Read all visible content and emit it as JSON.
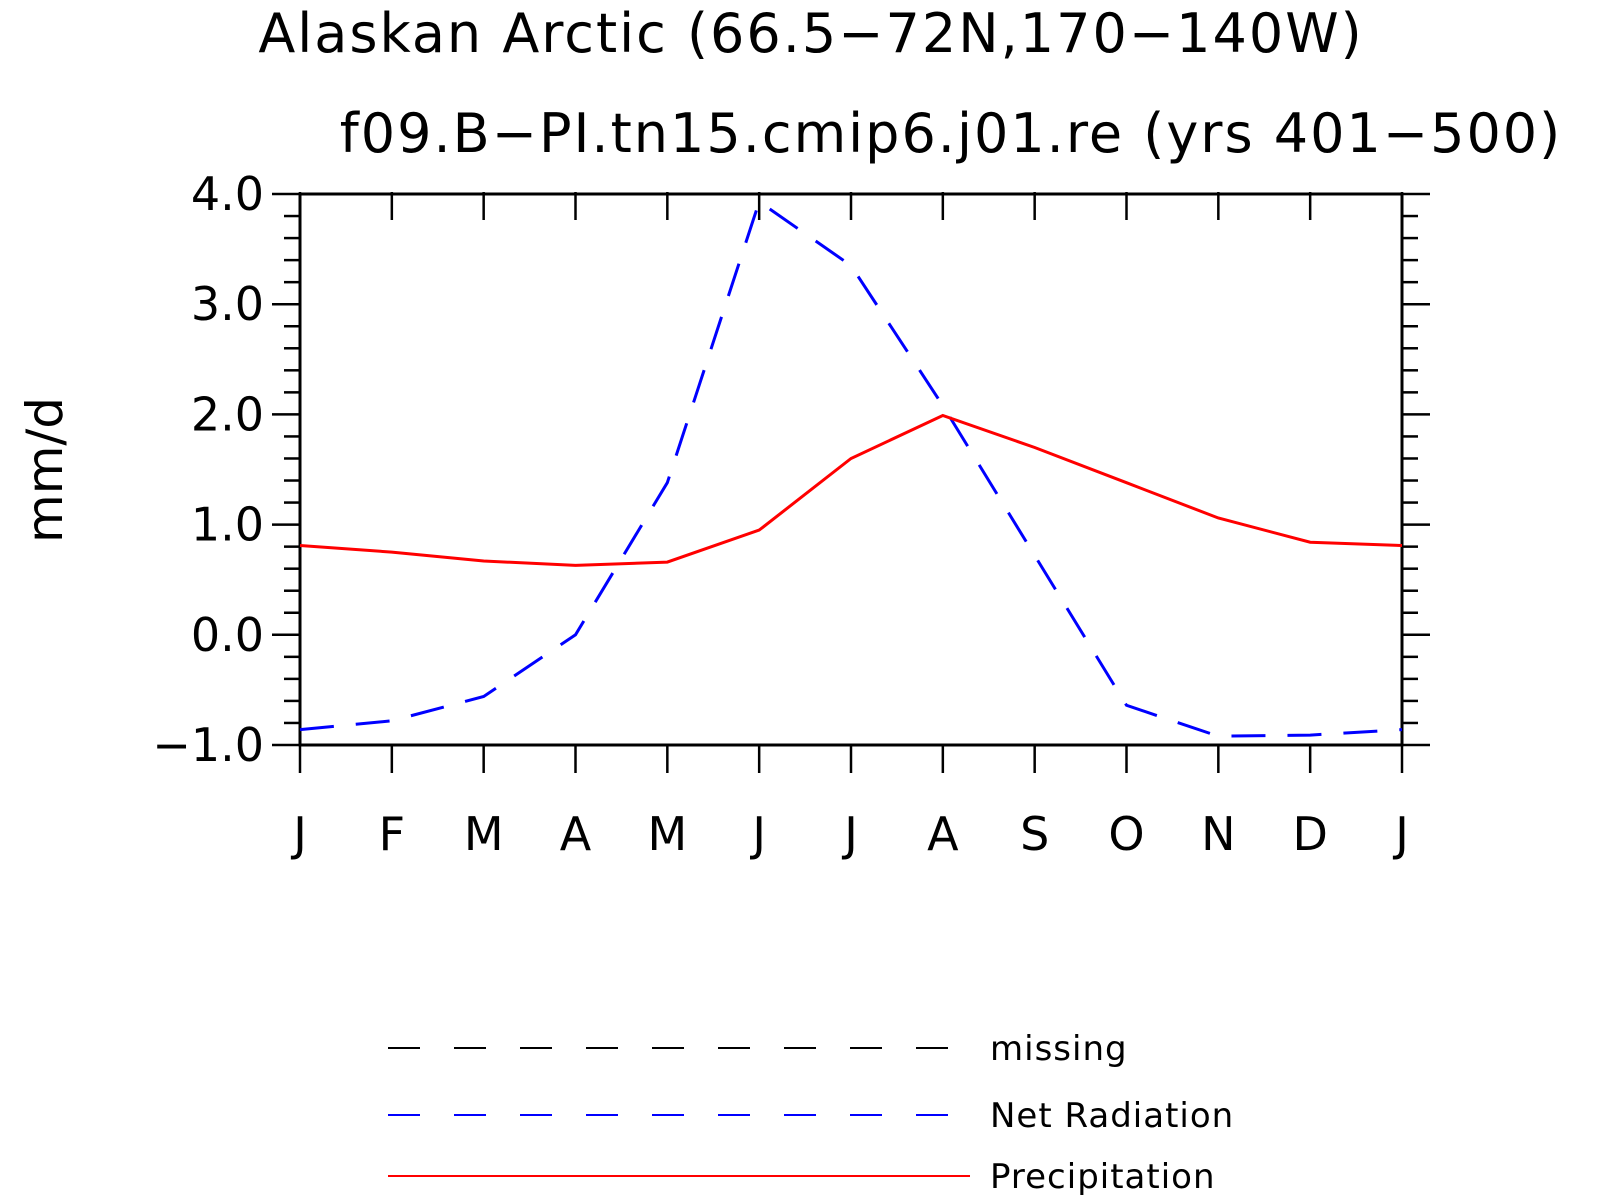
{
  "chart_data": {
    "type": "line",
    "title": "Alaskan Arctic (66.5−72N,170−140W)",
    "subtitle": "f09.B−PI.tn15.cmip6.j01.re (yrs 401−500)",
    "xlabel": "",
    "ylabel": "mm/d",
    "categories": [
      "J",
      "F",
      "M",
      "A",
      "M",
      "J",
      "J",
      "A",
      "S",
      "O",
      "N",
      "D",
      "J"
    ],
    "ylim": [
      -1.0,
      4.0
    ],
    "yticks": [
      "−1.0",
      "0.0",
      "1.0",
      "2.0",
      "3.0",
      "4.0"
    ],
    "ytick_values": [
      -1.0,
      0.0,
      1.0,
      2.0,
      3.0,
      4.0
    ],
    "grid": false,
    "legend_position": "bottom",
    "series": [
      {
        "name": "Net Radiation",
        "color": "#0000ff",
        "style": "dashed",
        "values": [
          -0.86,
          -0.78,
          -0.56,
          0.0,
          1.38,
          3.93,
          3.35,
          2.08,
          0.72,
          -0.64,
          -0.92,
          -0.91,
          -0.86
        ]
      },
      {
        "name": "Precipitation",
        "color": "#ff0000",
        "style": "solid",
        "values": [
          0.81,
          0.75,
          0.67,
          0.63,
          0.66,
          0.95,
          1.6,
          1.99,
          1.7,
          1.38,
          1.06,
          0.84,
          0.81
        ]
      }
    ],
    "legend": [
      {
        "label": "missing",
        "color": "#000000",
        "style": "dashed"
      },
      {
        "label": "Net Radiation",
        "color": "#0000ff",
        "style": "dashed"
      },
      {
        "label": "Precipitation",
        "color": "#ff0000",
        "style": "solid"
      }
    ]
  }
}
